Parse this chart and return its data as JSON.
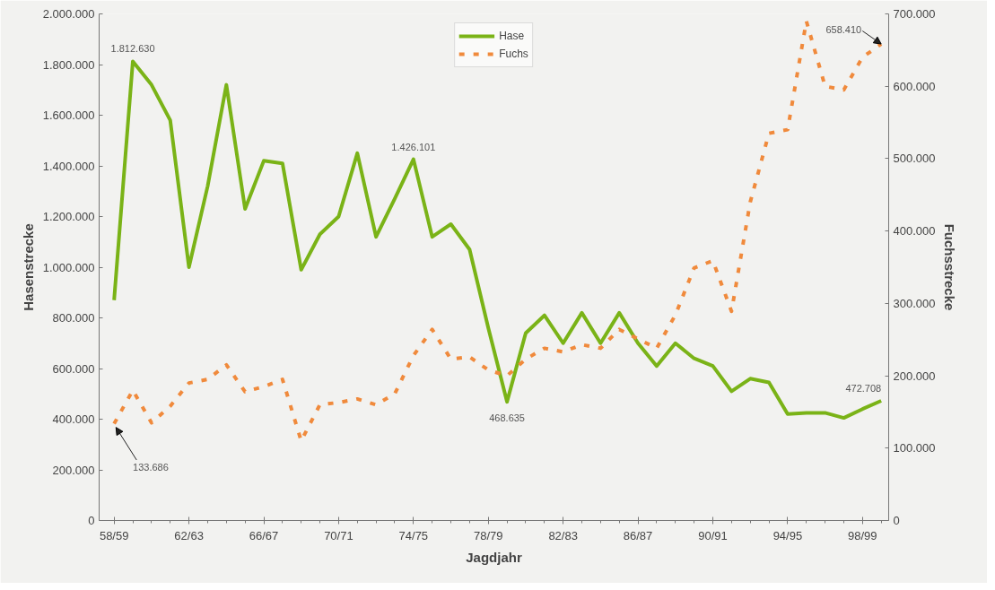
{
  "chart_data": {
    "type": "line",
    "xlabel": "Jagdjahr",
    "ylabel": "Hasenstrecke",
    "y2label": "Fuchsstrecke",
    "categories": [
      "58/59",
      null,
      null,
      null,
      "62/63",
      null,
      null,
      null,
      "66/67",
      null,
      null,
      null,
      "70/71",
      null,
      null,
      null,
      "74/75",
      null,
      null,
      null,
      "78/79",
      null,
      null,
      null,
      "82/83",
      null,
      null,
      null,
      "86/87",
      null,
      null,
      null,
      "90/91",
      null,
      null,
      null,
      "94/95",
      null,
      null,
      null,
      "98/99",
      null
    ],
    "series": [
      {
        "name": "Hase",
        "color": "#7ab317",
        "line_style": "solid",
        "value_labels": [
          null,
          "1.812.630",
          null,
          null,
          null,
          null,
          null,
          null,
          null,
          null,
          null,
          null,
          null,
          null,
          null,
          null,
          "1.426.101",
          null,
          null,
          null,
          null,
          "468.635",
          null,
          null,
          null,
          null,
          null,
          null,
          null,
          null,
          null,
          null,
          null,
          null,
          null,
          null,
          null,
          null,
          null,
          null,
          null,
          "472.708"
        ],
        "values": [
          870000,
          1812630,
          1720000,
          1580000,
          1000000,
          1320000,
          1720000,
          1230000,
          1420000,
          1410000,
          990000,
          1130000,
          1200000,
          1450000,
          1120000,
          1270000,
          1426101,
          1120000,
          1170000,
          1070000,
          760000,
          468635,
          740000,
          810000,
          700000,
          820000,
          700000,
          820000,
          700000,
          610000,
          700000,
          640000,
          610000,
          510000,
          560000,
          545000,
          420000,
          425000,
          425000,
          405000,
          440000,
          472708
        ]
      },
      {
        "name": "Fuchs",
        "color": "#f08a3c",
        "line_style": "dashed",
        "axis": "y2",
        "value_labels": [
          "133.686",
          null,
          null,
          null,
          null,
          null,
          null,
          null,
          null,
          null,
          null,
          null,
          null,
          null,
          null,
          null,
          null,
          null,
          null,
          null,
          null,
          null,
          null,
          null,
          null,
          null,
          null,
          null,
          null,
          null,
          null,
          null,
          null,
          null,
          null,
          null,
          null,
          null,
          null,
          null,
          null,
          "658.410"
        ],
        "values": [
          133686,
          180000,
          135000,
          158000,
          190000,
          195000,
          215000,
          178000,
          185000,
          195000,
          110000,
          160000,
          163000,
          168000,
          160000,
          175000,
          228000,
          264000,
          223000,
          226000,
          208000,
          200000,
          223000,
          238000,
          233000,
          243000,
          238000,
          264000,
          251000,
          238000,
          284000,
          349000,
          359000,
          289000,
          440000,
          535000,
          540000,
          690000,
          600000,
          595000,
          640000,
          658410
        ]
      }
    ],
    "ylim": [
      0,
      2000000
    ],
    "yticks": [
      0,
      {
        "value": 200000,
        "label": "200.000"
      },
      {
        "value": 400000,
        "label": "400.000"
      },
      {
        "value": 600000,
        "label": "600.000"
      },
      {
        "value": 800000,
        "label": "800.000"
      },
      {
        "value": 1000000,
        "label": "1.000.000"
      },
      {
        "value": 1200000,
        "label": "1.200.000"
      },
      {
        "value": 1400000,
        "label": "1.400.000"
      },
      {
        "value": 1600000,
        "label": "1.600.000"
      },
      {
        "value": 1800000,
        "label": "1.800.000"
      },
      {
        "value": 2000000,
        "label": "2.000.000"
      }
    ],
    "y2lim": [
      0,
      700000
    ],
    "y2ticks": [
      0,
      {
        "value": 100000,
        "label": "100.000"
      },
      {
        "value": 200000,
        "label": "200.000"
      },
      {
        "value": 300000,
        "label": "300.000"
      },
      {
        "value": 400000,
        "label": "400.000"
      },
      {
        "value": 500000,
        "label": "500.000"
      },
      {
        "value": 600000,
        "label": "600.000"
      },
      {
        "value": 700000,
        "label": "700.000"
      }
    ],
    "legend": "top",
    "grid": false,
    "marker": "none"
  }
}
